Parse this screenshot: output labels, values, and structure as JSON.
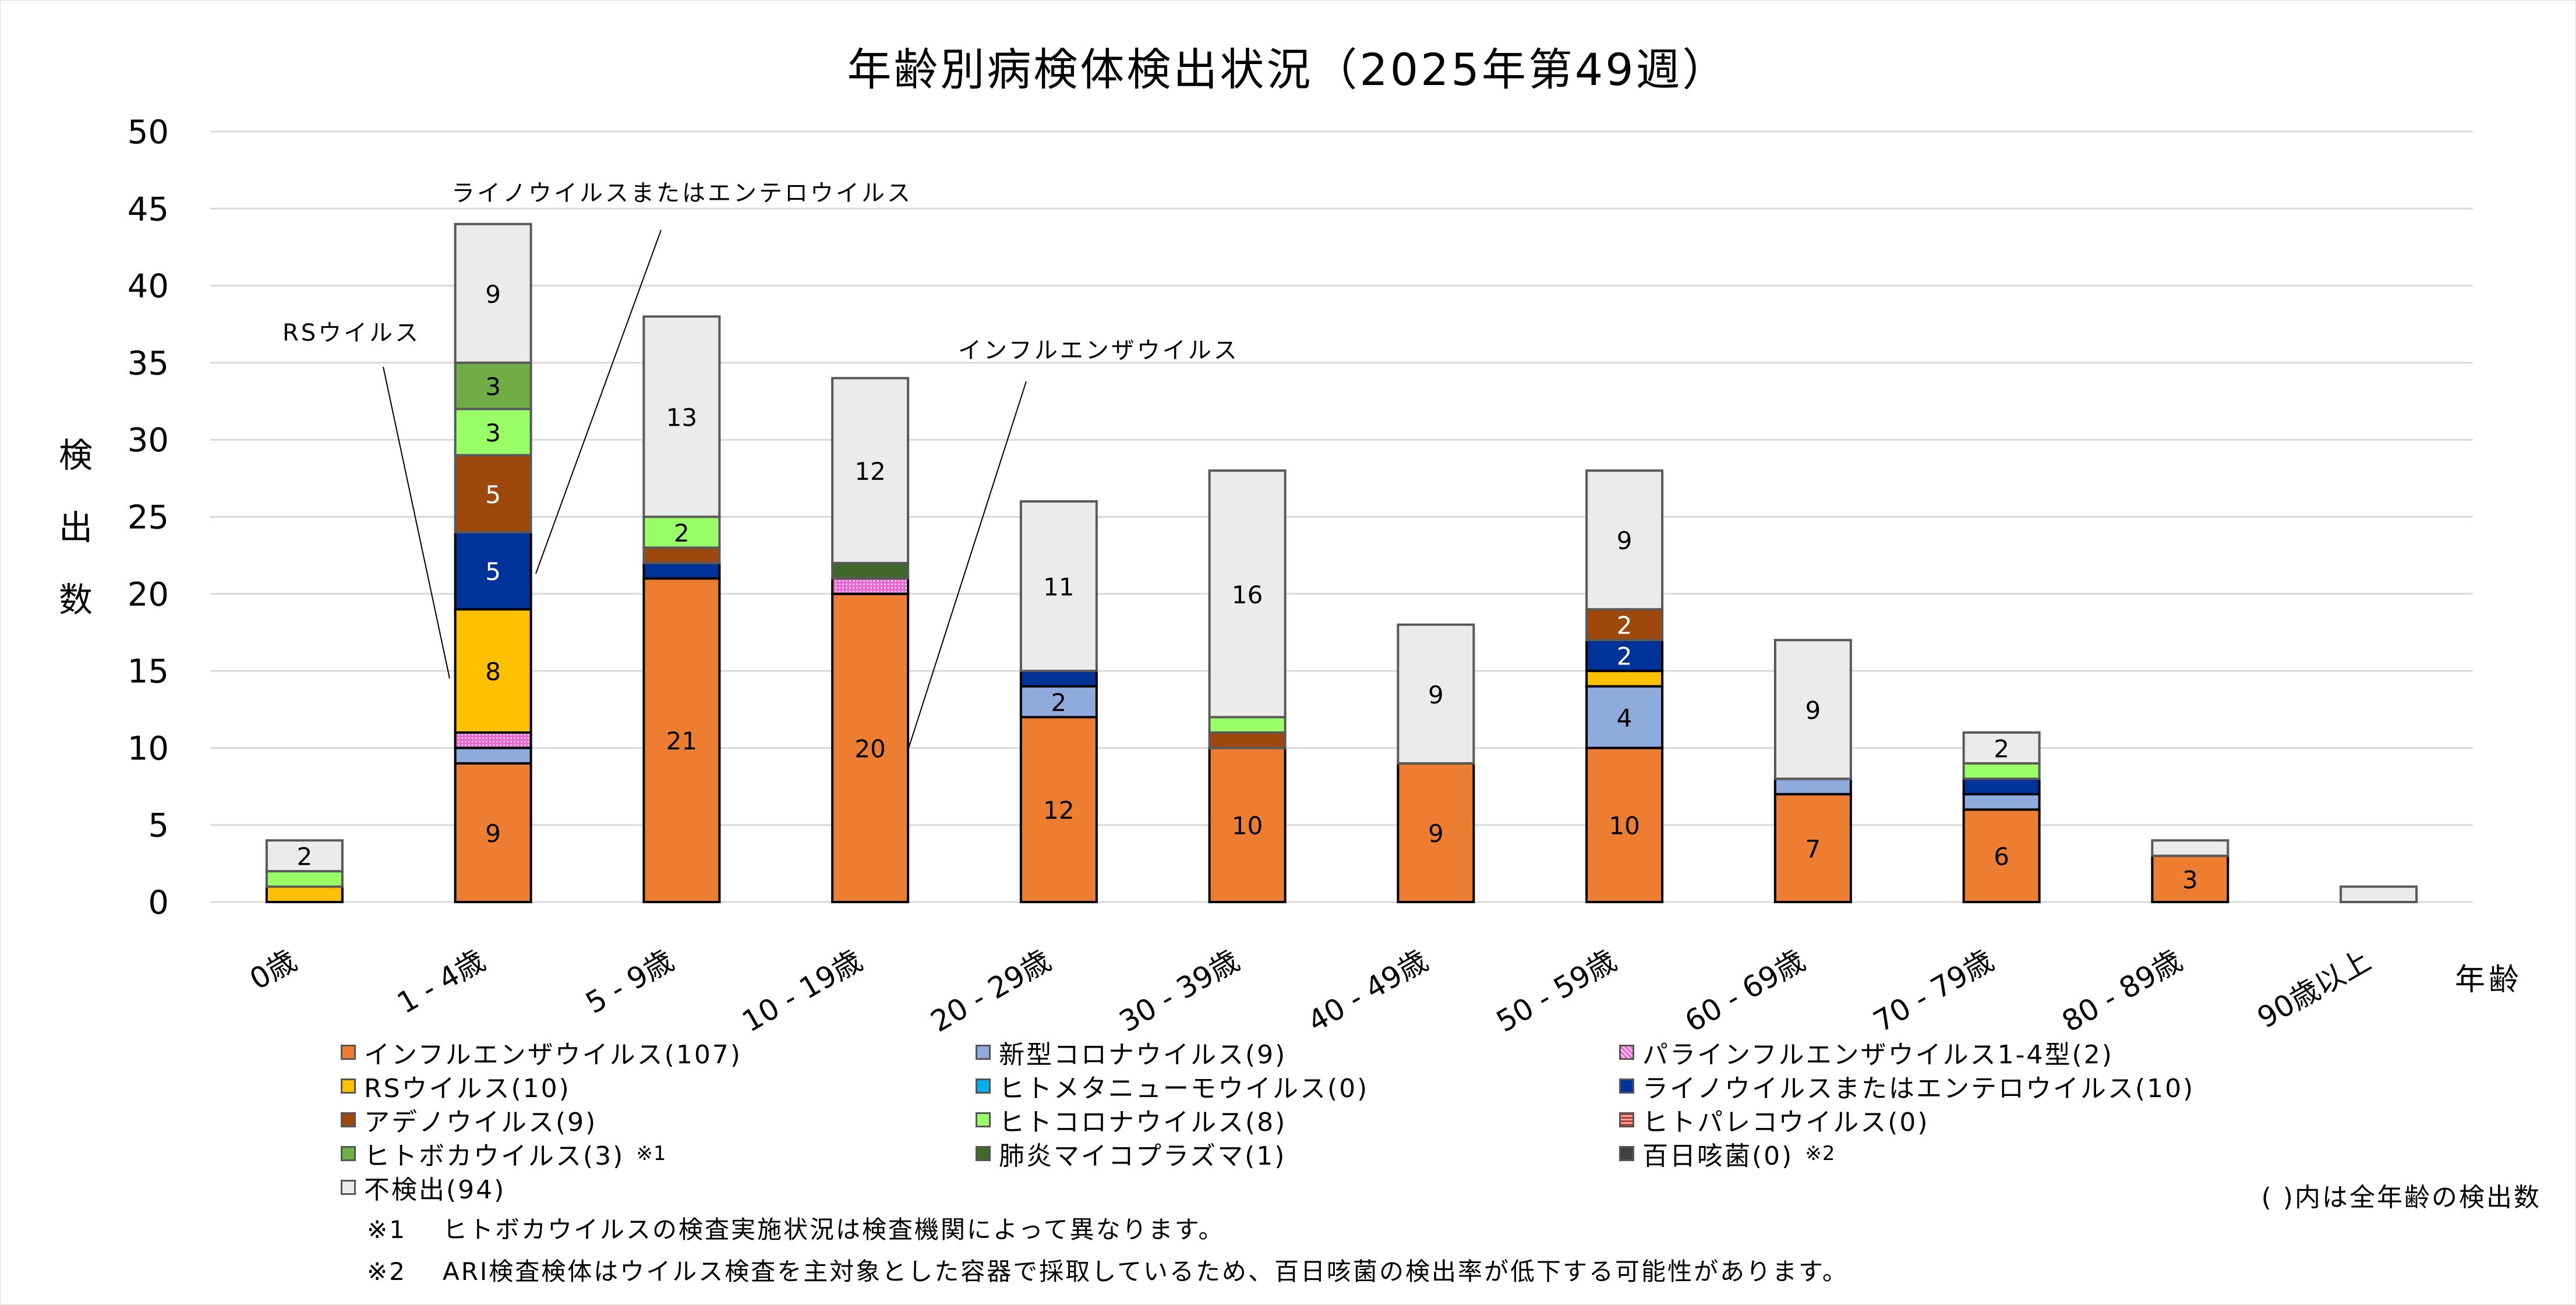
{
  "title": "年齢別病検体検出状況（2025年第49週）",
  "y_axis_label": [
    "検",
    "出",
    "数"
  ],
  "x_axis_label": "年齢",
  "legend_note": "( )内は全年齢の検出数",
  "footnotes": [
    {
      "key": "※1",
      "text": "ヒトボカウイルスの検査実施状況は検査機関によって異なります。"
    },
    {
      "key": "※2",
      "text": "ARI検査検体はウイルス検査を主対象とした容器で採取しているため、百日咳菌の検出率が低下する可能性があります。"
    }
  ],
  "legend": [
    {
      "label": "インフルエンザウイルス(107)",
      "color": "#ED7D31",
      "mark": ""
    },
    {
      "label": "新型コロナウイルス(9)",
      "color": "#8FAADC",
      "mark": ""
    },
    {
      "label": "パラインフルエンザウイルス1-4型(2)",
      "color": "#E868D0",
      "mark": ""
    },
    {
      "label": "RSウイルス(10)",
      "color": "#FFC000",
      "mark": ""
    },
    {
      "label": "ヒトメタニューモウイルス(0)",
      "color": "#00B0F0",
      "mark": ""
    },
    {
      "label": "ライノウイルスまたはエンテロウイルス(10)",
      "color": "#003399",
      "mark": ""
    },
    {
      "label": "アデノウイルス(9)",
      "color": "#9E480E",
      "mark": ""
    },
    {
      "label": "ヒトコロナウイルス(8)",
      "color": "#99FF66",
      "mark": ""
    },
    {
      "label": "ヒトパレコウイルス(0)",
      "color": "#D04848",
      "mark": ""
    },
    {
      "label": "ヒトボカウイルス(3)",
      "color": "#70AD47",
      "mark": "※1"
    },
    {
      "label": "肺炎マイコプラズマ(1)",
      "color": "#43682B",
      "mark": ""
    },
    {
      "label": "百日咳菌(0)",
      "color": "#404040",
      "mark": "※2"
    },
    {
      "label": "不検出(94)",
      "color": "#EBEBEB",
      "mark": ""
    }
  ],
  "annotations": [
    {
      "text": "ライノウイルスまたはエンテロウイルス",
      "target_category": "1 - 4歳",
      "target_series": "ライノウイルスまたはエンテロウイルス"
    },
    {
      "text": "RSウイルス",
      "target_category": "1 - 4歳",
      "target_series": "RSウイルス"
    },
    {
      "text": "インフルエンザウイルス",
      "target_category": "10 - 19歳",
      "target_series": "インフルエンザウイルス"
    }
  ],
  "chart_data": {
    "type": "bar",
    "stacked": true,
    "title": "年齢別病検体検出状況（2025年第49週）",
    "xlabel": "年齢",
    "ylabel": "検出数",
    "ylim": [
      0,
      50
    ],
    "yticks": [
      0,
      5,
      10,
      15,
      20,
      25,
      30,
      35,
      40,
      45,
      50
    ],
    "grid": true,
    "legend_position": "bottom",
    "categories": [
      "0歳",
      "1 - 4歳",
      "5 - 9歳",
      "10 - 19歳",
      "20 - 29歳",
      "30 - 39歳",
      "40 - 49歳",
      "50 - 59歳",
      "60 - 69歳",
      "70 - 79歳",
      "80 - 89歳",
      "90歳以上"
    ],
    "series": [
      {
        "name": "インフルエンザウイルス",
        "color": "#ED7D31",
        "label_color": "#000000",
        "values": [
          0,
          9,
          21,
          20,
          12,
          10,
          9,
          10,
          7,
          6,
          3,
          0
        ]
      },
      {
        "name": "新型コロナウイルス",
        "color": "#8FAADC",
        "label_color": "#000000",
        "values": [
          0,
          1,
          0,
          0,
          2,
          0,
          0,
          4,
          1,
          1,
          0,
          0
        ]
      },
      {
        "name": "パラインフルエンザウイルス1-4型",
        "color": "#E868D0",
        "label_color": "#000000",
        "values": [
          0,
          1,
          0,
          1,
          0,
          0,
          0,
          0,
          0,
          0,
          0,
          0
        ]
      },
      {
        "name": "RSウイルス",
        "color": "#FFC000",
        "label_color": "#000000",
        "values": [
          1,
          8,
          0,
          0,
          0,
          0,
          0,
          1,
          0,
          0,
          0,
          0
        ]
      },
      {
        "name": "ヒトメタニューモウイルス",
        "color": "#00B0F0",
        "label_color": "#000000",
        "values": [
          0,
          0,
          0,
          0,
          0,
          0,
          0,
          0,
          0,
          0,
          0,
          0
        ]
      },
      {
        "name": "ライノウイルスまたはエンテロウイルス",
        "color": "#003399",
        "label_color": "#FFFFFF",
        "values": [
          0,
          5,
          1,
          0,
          1,
          0,
          0,
          2,
          0,
          1,
          0,
          0
        ]
      },
      {
        "name": "アデノウイルス",
        "color": "#9E480E",
        "label_color": "#FFFFFF",
        "values": [
          0,
          5,
          1,
          0,
          0,
          1,
          0,
          2,
          0,
          0,
          0,
          0
        ]
      },
      {
        "name": "ヒトコロナウイルス",
        "color": "#99FF66",
        "label_color": "#000000",
        "values": [
          1,
          3,
          2,
          0,
          0,
          1,
          0,
          0,
          0,
          1,
          0,
          0
        ]
      },
      {
        "name": "ヒトパレコウイルス",
        "color": "#D04848",
        "label_color": "#000000",
        "values": [
          0,
          0,
          0,
          0,
          0,
          0,
          0,
          0,
          0,
          0,
          0,
          0
        ]
      },
      {
        "name": "ヒトボカウイルス",
        "color": "#70AD47",
        "label_color": "#000000",
        "values": [
          0,
          3,
          0,
          0,
          0,
          0,
          0,
          0,
          0,
          0,
          0,
          0
        ]
      },
      {
        "name": "肺炎マイコプラズマ",
        "color": "#43682B",
        "label_color": "#FFFFFF",
        "values": [
          0,
          0,
          0,
          1,
          0,
          0,
          0,
          0,
          0,
          0,
          0,
          0
        ]
      },
      {
        "name": "百日咳菌",
        "color": "#404040",
        "label_color": "#FFFFFF",
        "values": [
          0,
          0,
          0,
          0,
          0,
          0,
          0,
          0,
          0,
          0,
          0,
          0
        ]
      },
      {
        "name": "不検出",
        "color": "#EBEBEB",
        "label_color": "#000000",
        "values": [
          2,
          9,
          13,
          12,
          11,
          16,
          9,
          9,
          9,
          2,
          1,
          1
        ]
      }
    ]
  }
}
